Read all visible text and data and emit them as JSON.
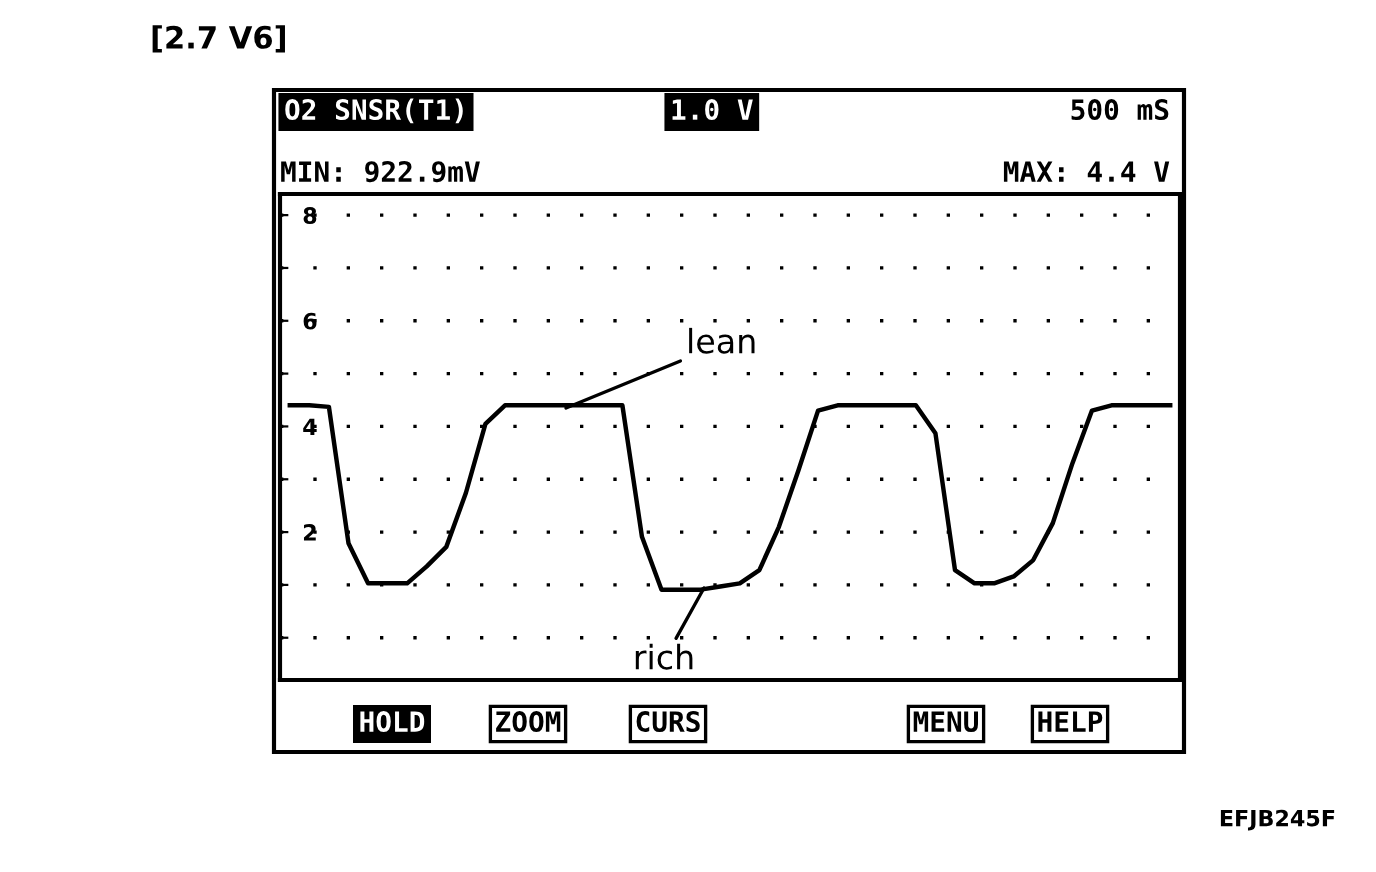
{
  "chart_data": {
    "type": "line",
    "title": "[2.7 V6]",
    "categories": [
      null,
      null,
      null,
      null,
      null,
      null,
      null,
      null,
      null,
      null,
      null,
      null,
      null,
      null,
      null,
      null,
      null,
      null,
      null,
      null,
      null,
      null,
      null,
      null,
      null,
      null,
      null,
      null,
      null,
      null,
      null,
      null,
      null,
      null,
      null,
      null,
      null,
      null,
      null,
      null,
      null,
      null,
      null,
      null,
      null,
      null
    ],
    "series": [
      {
        "color": "#000000",
        "values": [
          4.4,
          4.4,
          4.37,
          1.79,
          1.03,
          1.03,
          1.03,
          1.35,
          1.72,
          2.74,
          4.05,
          4.4,
          4.4,
          4.4,
          4.4,
          4.4,
          4.4,
          4.4,
          1.91,
          0.91,
          0.91,
          0.91,
          0.97,
          1.03,
          1.28,
          2.1,
          3.17,
          4.3,
          4.4,
          4.4,
          4.4,
          4.4,
          4.4,
          3.87,
          1.28,
          1.03,
          1.03,
          1.16,
          1.47,
          2.17,
          3.3,
          4.3,
          4.4,
          4.4,
          4.4,
          4.4
        ]
      }
    ],
    "ylim": [
      -0.8,
      8.4
    ],
    "yticks": [
      {
        "value": 0,
        "label": null
      },
      {
        "value": 1,
        "label": null
      },
      2,
      {
        "value": 3,
        "label": null
      },
      4,
      {
        "value": 5,
        "label": null
      },
      6,
      {
        "value": 7,
        "label": null
      },
      8
    ],
    "grid": "y",
    "line_style": "solid",
    "marker": "none",
    "annotations": [
      "O2 SNSR(T1)",
      "1.0 V",
      "500 mS",
      "MIN: 922.9mV",
      "MAX: 4.4 V",
      "lean",
      "rich",
      "HOLD",
      "ZOOM",
      "CURS",
      "MENU",
      "HELP",
      "EFJB245F"
    ]
  }
}
